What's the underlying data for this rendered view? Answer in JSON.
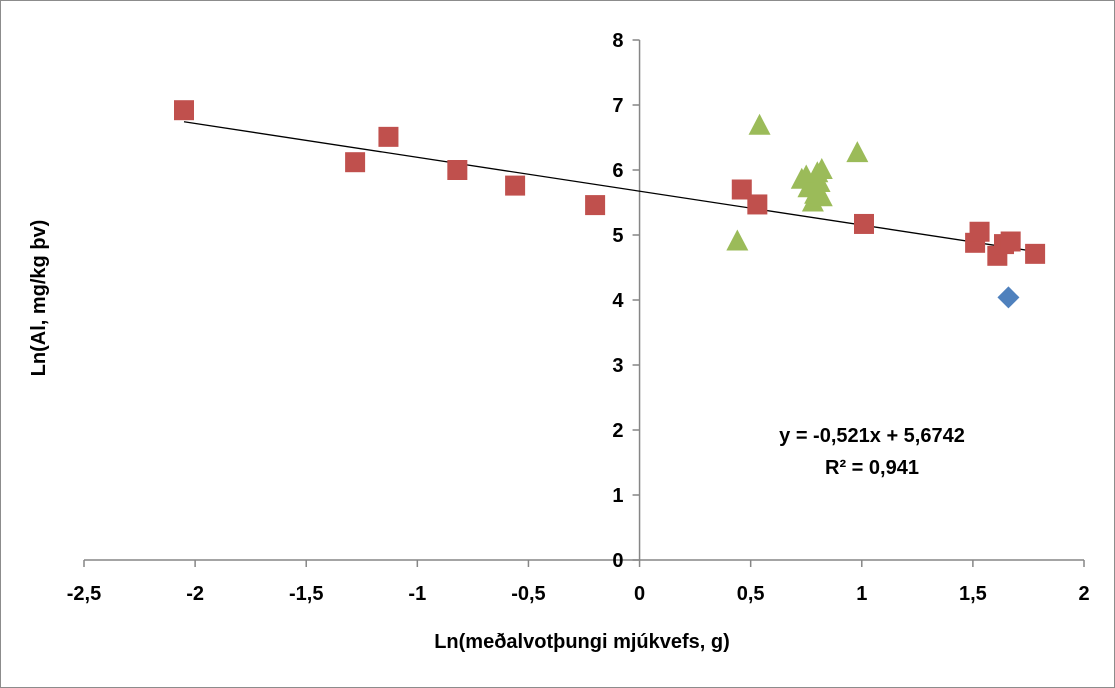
{
  "chart_data": {
    "type": "scatter",
    "title": "",
    "xlabel": "Ln(meðalvotþungi mjúkvefs, g)",
    "ylabel": "Ln(Al, mg/kg þv)",
    "xlim": [
      -2.5,
      2
    ],
    "ylim": [
      0,
      8
    ],
    "x_ticks": [
      -2.5,
      -2,
      -1.5,
      -1,
      -0.5,
      0,
      0.5,
      1,
      1.5,
      2
    ],
    "x_tick_labels": [
      "-2,5",
      "-2",
      "-1,5",
      "-1",
      "-0,5",
      "0",
      "0,5",
      "1",
      "1,5",
      "2"
    ],
    "y_ticks": [
      0,
      1,
      2,
      3,
      4,
      5,
      6,
      7,
      8
    ],
    "y_tick_labels": [
      "0",
      "1",
      "2",
      "3",
      "4",
      "5",
      "6",
      "7",
      "8"
    ],
    "grid": false,
    "legend": "none",
    "series": [
      {
        "marker": "square",
        "color": "#c0504d",
        "points": [
          [
            -2.05,
            6.92
          ],
          [
            -1.28,
            6.12
          ],
          [
            -1.13,
            6.51
          ],
          [
            -0.82,
            6.0
          ],
          [
            -0.56,
            5.76
          ],
          [
            -0.2,
            5.46
          ],
          [
            0.46,
            5.7
          ],
          [
            0.53,
            5.47
          ],
          [
            1.01,
            5.17
          ],
          [
            1.51,
            4.88
          ],
          [
            1.53,
            5.05
          ],
          [
            1.61,
            4.68
          ],
          [
            1.64,
            4.86
          ],
          [
            1.67,
            4.9
          ],
          [
            1.78,
            4.71
          ]
        ]
      },
      {
        "marker": "triangle",
        "color": "#9bbb59",
        "points": [
          [
            0.44,
            4.9
          ],
          [
            0.54,
            6.68
          ],
          [
            0.73,
            5.85
          ],
          [
            0.75,
            5.9
          ],
          [
            0.76,
            5.72
          ],
          [
            0.78,
            5.5
          ],
          [
            0.79,
            5.62
          ],
          [
            0.8,
            5.95
          ],
          [
            0.81,
            5.8
          ],
          [
            0.82,
            6.0
          ],
          [
            0.82,
            5.58
          ],
          [
            0.98,
            6.26
          ]
        ]
      },
      {
        "marker": "diamond",
        "color": "#4f81bd",
        "points": [
          [
            1.66,
            4.04
          ]
        ]
      }
    ],
    "trendline": {
      "slope": -0.521,
      "intercept": 5.6742,
      "x_range": [
        -2.05,
        1.78
      ],
      "color": "#000000"
    },
    "annotations": {
      "equation": "y = -0,521x + 5,6742",
      "r_squared": "R² = 0,941"
    }
  }
}
